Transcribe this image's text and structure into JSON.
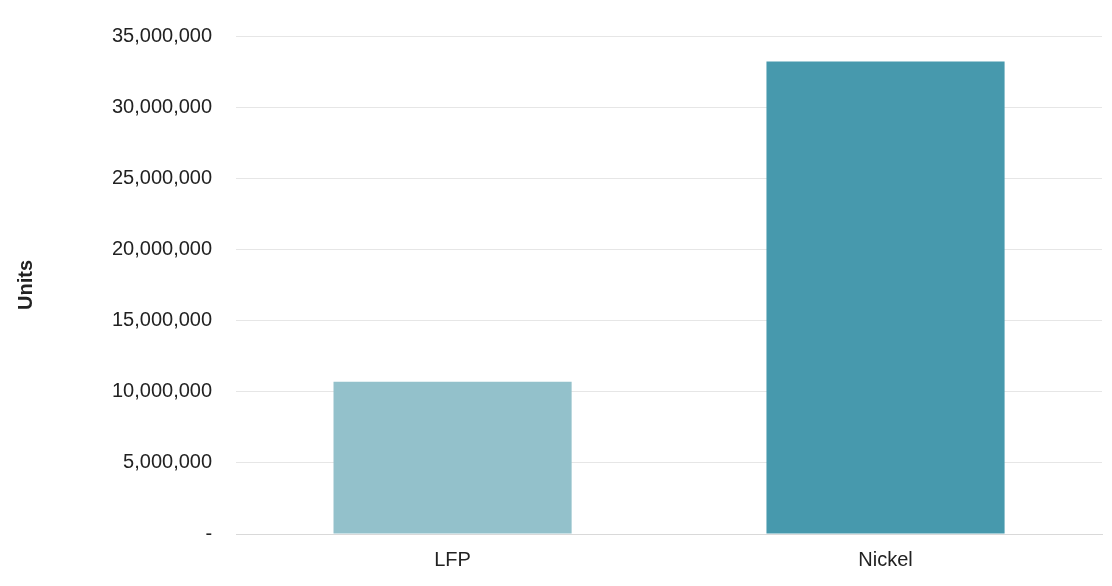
{
  "chart_data": {
    "type": "bar",
    "ylabel": "Units",
    "categories": [
      "LFP",
      "Nickel"
    ],
    "values": [
      10700000,
      33200000
    ],
    "colors": [
      "#93c1cb",
      "#4799ad"
    ],
    "ylim": [
      0,
      35000000
    ],
    "yticks": [
      {
        "value": 0,
        "label": "-"
      },
      {
        "value": 5000000,
        "label": "5,000,000"
      },
      {
        "value": 10000000,
        "label": "10,000,000"
      },
      {
        "value": 15000000,
        "label": "15,000,000"
      },
      {
        "value": 20000000,
        "label": "20,000,000"
      },
      {
        "value": 25000000,
        "label": "25,000,000"
      },
      {
        "value": 30000000,
        "label": "30,000,000"
      },
      {
        "value": 35000000,
        "label": "35,000,000"
      }
    ],
    "grid": "y"
  }
}
